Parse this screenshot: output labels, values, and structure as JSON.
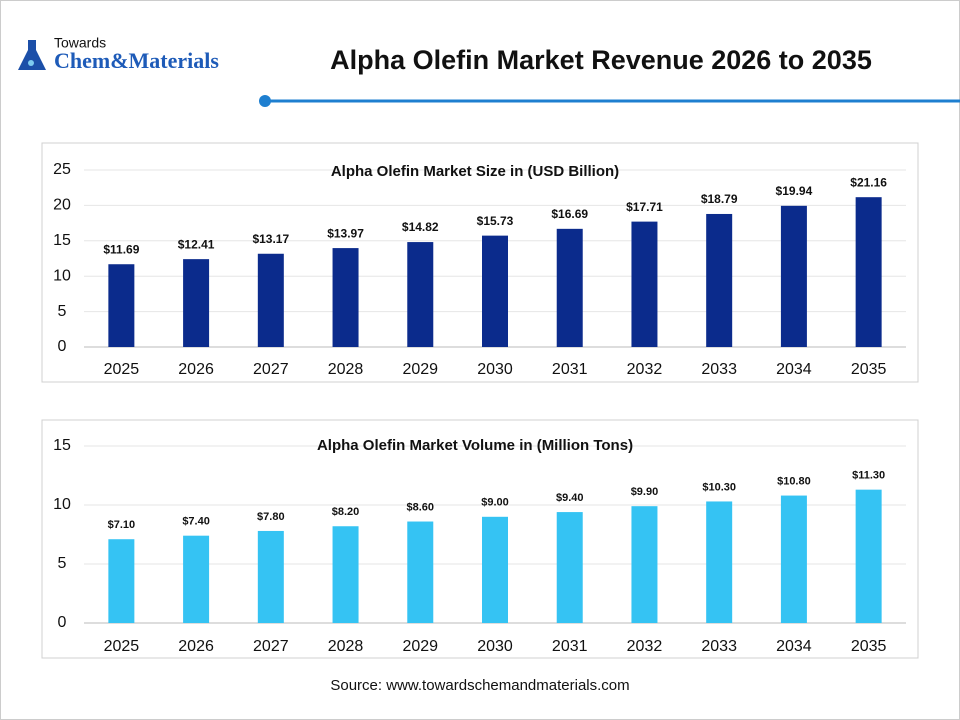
{
  "header": {
    "logo_small": "Towards",
    "logo_big": "Chem&Materials",
    "title": "Alpha Olefin Market Revenue 2026 to 2035"
  },
  "chart_data": [
    {
      "type": "bar",
      "title": "Alpha Olefin Market Size in (USD Billion)",
      "categories": [
        "2025",
        "2026",
        "2027",
        "2028",
        "2029",
        "2030",
        "2031",
        "2032",
        "2033",
        "2034",
        "2035"
      ],
      "values": [
        11.69,
        12.41,
        13.17,
        13.97,
        14.82,
        15.73,
        16.69,
        17.71,
        18.79,
        19.94,
        21.16
      ],
      "value_labels": [
        "$11.69",
        "$12.41",
        "$13.17",
        "$13.97",
        "$14.82",
        "$15.73",
        "$16.69",
        "$17.71",
        "$18.79",
        "$19.94",
        "$21.16"
      ],
      "color": "#0b2b8c",
      "ylim": [
        0,
        25
      ],
      "yticks": [
        0,
        5,
        10,
        15,
        20,
        25
      ],
      "grid": true
    },
    {
      "type": "bar",
      "title": "Alpha Olefin Market Volume in (Million Tons)",
      "categories": [
        "2025",
        "2026",
        "2027",
        "2028",
        "2029",
        "2030",
        "2031",
        "2032",
        "2033",
        "2034",
        "2035"
      ],
      "values": [
        7.1,
        7.4,
        7.8,
        8.2,
        8.6,
        9.0,
        9.4,
        9.9,
        10.3,
        10.8,
        11.3
      ],
      "value_labels": [
        "$7.10",
        "$7.40",
        "$7.80",
        "$8.20",
        "$8.60",
        "$9.00",
        "$9.40",
        "$9.90",
        "$10.30",
        "$10.80",
        "$11.30"
      ],
      "color": "#35c3f3",
      "ylim": [
        0,
        15
      ],
      "yticks": [
        0,
        5,
        10,
        15
      ],
      "grid": true
    }
  ],
  "source": "Source: www.towardschemandmaterials.com"
}
